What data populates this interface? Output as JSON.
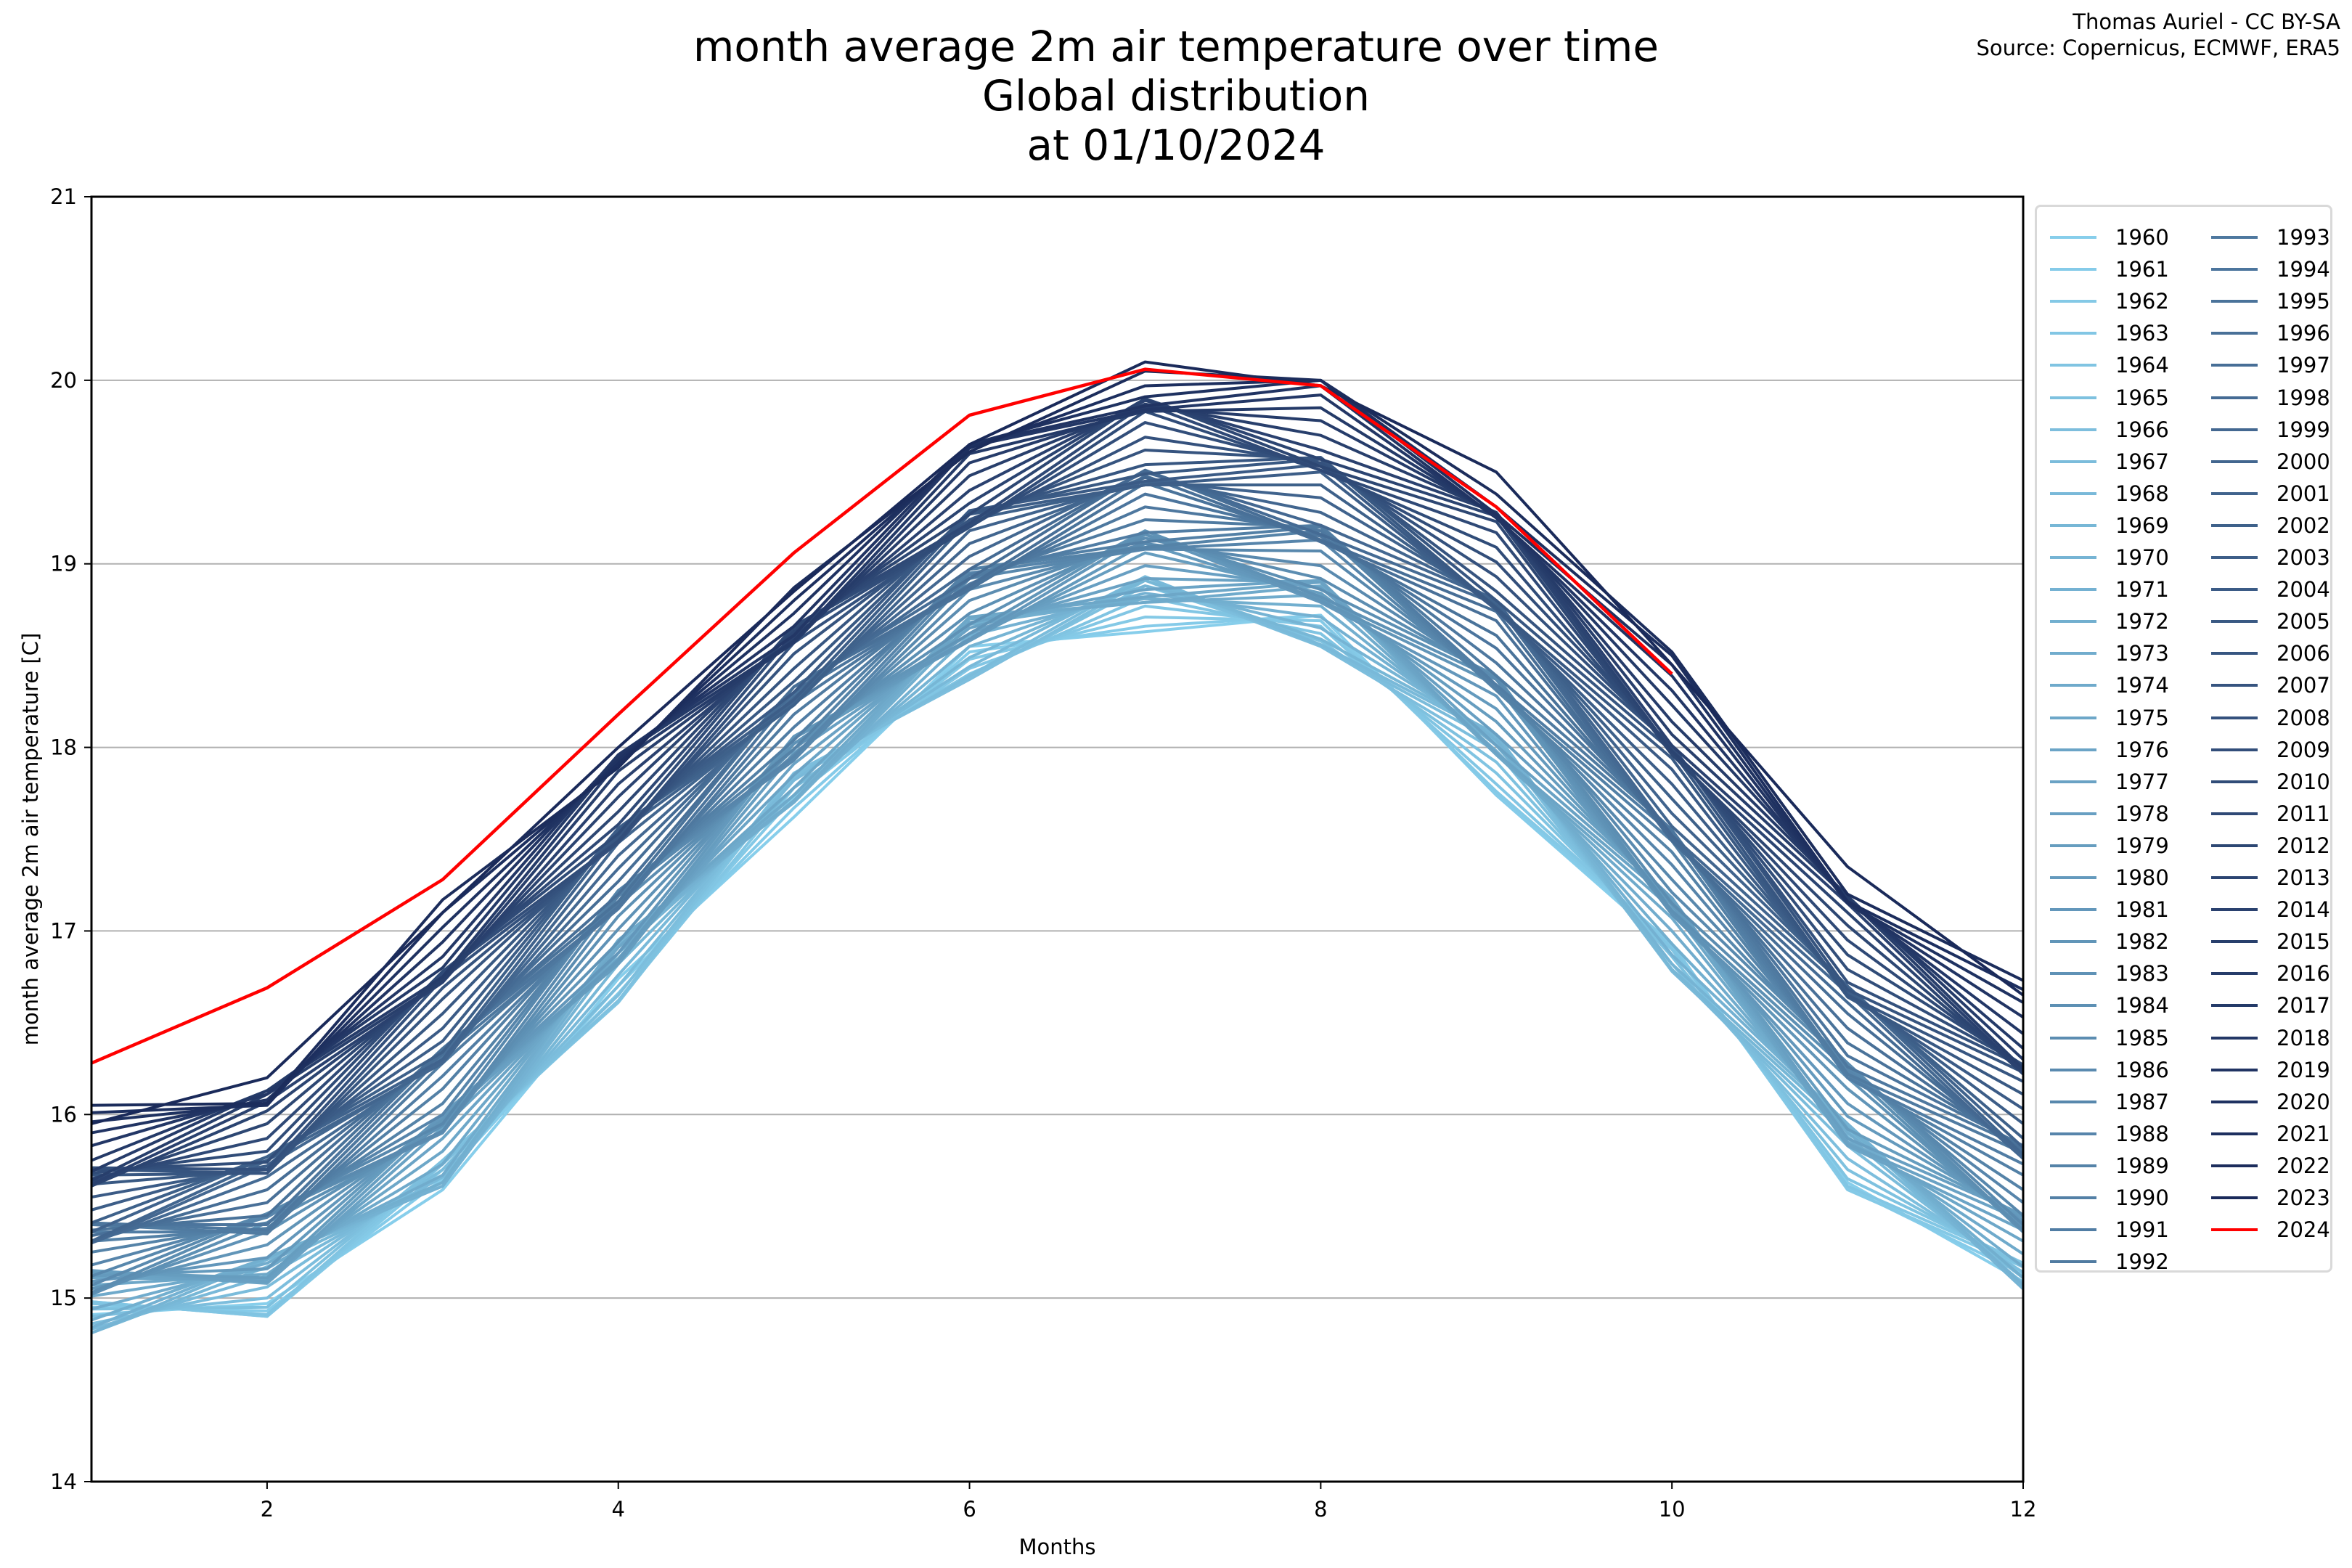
{
  "chart_data": {
    "type": "line",
    "title": "month average 2m air temperature over time",
    "subtitle_lines": [
      "Global distribution",
      "at 01/10/2024"
    ],
    "credit_lines": [
      "Thomas Auriel - CC BY-SA",
      "Source: Copernicus, ECMWF, ERA5"
    ],
    "xlabel": "Months",
    "ylabel": "month average 2m air temperature [C]",
    "xlim": [
      1,
      12
    ],
    "ylim": [
      14,
      21
    ],
    "xticks": [
      2,
      4,
      6,
      8,
      10,
      12
    ],
    "yticks": [
      14,
      15,
      16,
      17,
      18,
      19,
      20,
      21
    ],
    "grid": "horizontal",
    "legend_position": "right-outside",
    "legend_columns": 2,
    "x": [
      1,
      2,
      3,
      4,
      5,
      6,
      7,
      8,
      9,
      10,
      11,
      12
    ],
    "base_first_year": [
      14.85,
      15.0,
      15.6,
      16.7,
      17.7,
      18.45,
      18.75,
      18.6,
      17.85,
      16.8,
      15.7,
      15.05
    ],
    "base_last_year": [
      15.95,
      16.2,
      17.1,
      18.0,
      18.85,
      19.65,
      20.1,
      19.97,
      19.5,
      18.45,
      17.35,
      16.65
    ],
    "highlight": {
      "name": "2024",
      "color": "#ff0000",
      "values": [
        16.28,
        16.69,
        17.28,
        18.18,
        19.06,
        19.81,
        20.06,
        19.97,
        19.31,
        18.4
      ]
    },
    "color_start": "#87ceeb",
    "color_end": "#1a2a5a",
    "years_from": 1960,
    "years_to": 2023
  }
}
